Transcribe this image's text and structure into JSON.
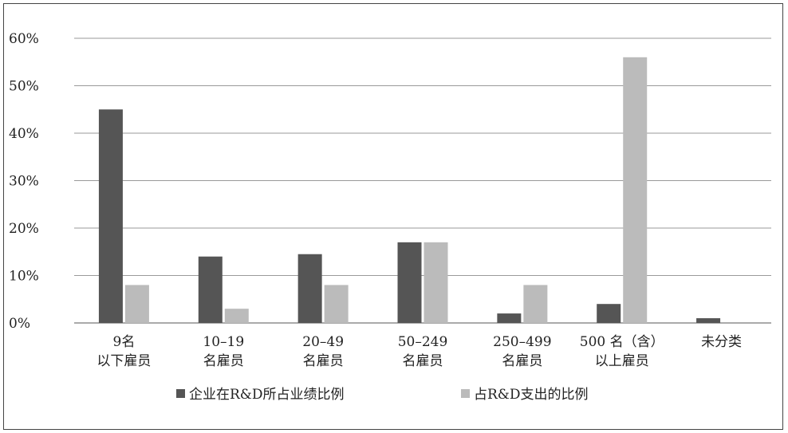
{
  "chart_data": {
    "type": "bar",
    "title": "",
    "xlabel": "",
    "ylabel": "",
    "ylim": [
      0,
      60
    ],
    "yticks": [
      "0%",
      "10%",
      "20%",
      "30%",
      "40%",
      "50%",
      "60%"
    ],
    "grid": true,
    "legend_position": "bottom",
    "categories": [
      [
        "9名",
        "以下雇员"
      ],
      [
        "10–19",
        "名雇员"
      ],
      [
        "20–49",
        "名雇员"
      ],
      [
        "50–249",
        "名雇员"
      ],
      [
        "250–499",
        "名雇员"
      ],
      [
        "500 名（含）",
        "以上雇员"
      ],
      [
        "未分类",
        ""
      ]
    ],
    "series": [
      {
        "name": "企业在R&D所占业绩比例",
        "color": "#555555",
        "values": [
          45,
          14,
          14.5,
          17,
          2,
          4,
          1
        ]
      },
      {
        "name": "占R&D支出的比例",
        "color": "#bbbbbb",
        "values": [
          8,
          3,
          8,
          17,
          8,
          56,
          0
        ]
      }
    ]
  }
}
